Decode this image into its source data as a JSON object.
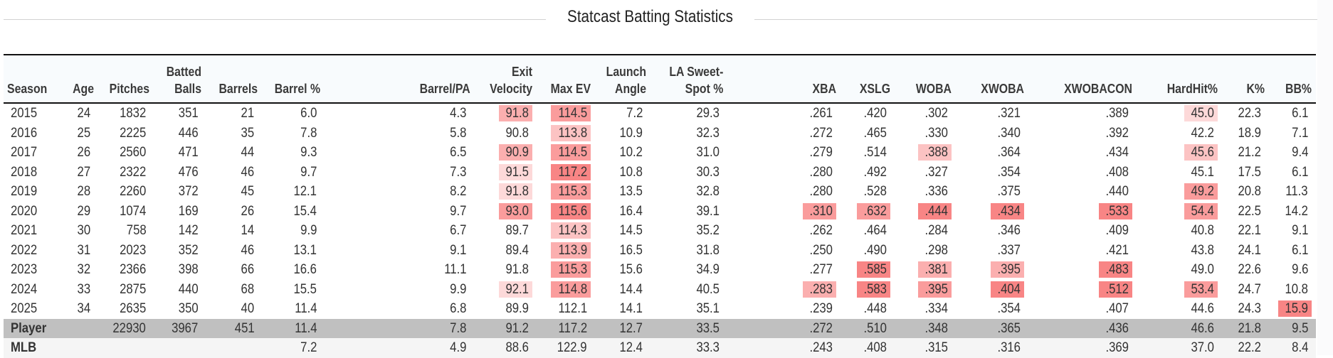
{
  "title": "Statcast Batting Statistics",
  "columns": [
    {
      "key": "season",
      "line1": "",
      "line2": "Season"
    },
    {
      "key": "age",
      "line1": "",
      "line2": "Age"
    },
    {
      "key": "pitches",
      "line1": "",
      "line2": "Pitches"
    },
    {
      "key": "batted_balls",
      "line1": "Batted",
      "line2": "Balls"
    },
    {
      "key": "barrels",
      "line1": "",
      "line2": "Barrels"
    },
    {
      "key": "barrel_pct",
      "line1": "",
      "line2": "Barrel %"
    },
    {
      "key": "barrel_pa",
      "line1": "",
      "line2": "Barrel/PA"
    },
    {
      "key": "exit_velocity",
      "line1": "Exit",
      "line2": "Velocity"
    },
    {
      "key": "max_ev",
      "line1": "",
      "line2": "Max EV"
    },
    {
      "key": "launch_angle",
      "line1": "Launch",
      "line2": "Angle"
    },
    {
      "key": "la_sweet_spot",
      "line1": "LA Sweet-",
      "line2": "Spot %"
    },
    {
      "key": "xba",
      "line1": "",
      "line2": "XBA"
    },
    {
      "key": "xslg",
      "line1": "",
      "line2": "XSLG"
    },
    {
      "key": "woba",
      "line1": "",
      "line2": "WOBA"
    },
    {
      "key": "xwoba",
      "line1": "",
      "line2": "XWOBA"
    },
    {
      "key": "xwobacon",
      "line1": "",
      "line2": "XWOBACON"
    },
    {
      "key": "hardhit",
      "line1": "",
      "line2": "HardHit%"
    },
    {
      "key": "k_pct",
      "line1": "",
      "line2": "K%"
    },
    {
      "key": "bb_pct",
      "line1": "",
      "line2": "BB%"
    }
  ],
  "heat_colors": {
    "h1": "#fdd9d9",
    "h2": "#fcc3c3",
    "h3": "#fbafaf",
    "h4": "#fa9c9c",
    "h5": "#f88585"
  },
  "rows": [
    {
      "type": "season",
      "cells": [
        "2015",
        "24",
        "1832",
        "351",
        "21",
        "6.0",
        "4.3",
        "91.8",
        "114.5",
        "7.2",
        "29.3",
        ".261",
        ".420",
        ".302",
        ".321",
        ".389",
        "45.0",
        "22.3",
        "6.1"
      ],
      "heat": {
        "7": "h3",
        "8": "h4",
        "16": "h1"
      }
    },
    {
      "type": "season",
      "cells": [
        "2016",
        "25",
        "2225",
        "446",
        "35",
        "7.8",
        "5.8",
        "90.8",
        "113.8",
        "10.9",
        "32.3",
        ".272",
        ".465",
        ".330",
        ".340",
        ".392",
        "42.2",
        "18.9",
        "7.1"
      ],
      "heat": {
        "8": "h2"
      }
    },
    {
      "type": "season",
      "cells": [
        "2017",
        "26",
        "2560",
        "471",
        "44",
        "9.3",
        "6.5",
        "90.9",
        "114.5",
        "10.2",
        "31.0",
        ".279",
        ".514",
        ".388",
        ".364",
        ".434",
        "45.6",
        "21.2",
        "9.4"
      ],
      "heat": {
        "7": "h3",
        "8": "h4",
        "13": "h2",
        "16": "h2"
      }
    },
    {
      "type": "season",
      "cells": [
        "2018",
        "27",
        "2322",
        "476",
        "46",
        "9.7",
        "7.3",
        "91.5",
        "117.2",
        "10.8",
        "30.3",
        ".280",
        ".492",
        ".327",
        ".354",
        ".408",
        "45.1",
        "17.5",
        "6.1"
      ],
      "heat": {
        "7": "h1",
        "8": "h5"
      }
    },
    {
      "type": "season",
      "cells": [
        "2019",
        "28",
        "2260",
        "372",
        "45",
        "12.1",
        "8.2",
        "91.8",
        "115.3",
        "13.5",
        "32.8",
        ".280",
        ".528",
        ".336",
        ".375",
        ".440",
        "49.2",
        "20.8",
        "11.3"
      ],
      "heat": {
        "7": "h1",
        "8": "h4",
        "16": "h4"
      }
    },
    {
      "type": "season",
      "cells": [
        "2020",
        "29",
        "1074",
        "169",
        "26",
        "15.4",
        "9.7",
        "93.0",
        "115.6",
        "16.4",
        "39.1",
        ".310",
        ".632",
        ".444",
        ".434",
        ".533",
        "54.4",
        "22.5",
        "14.2"
      ],
      "heat": {
        "7": "h4",
        "8": "h5",
        "11": "h4",
        "12": "h4",
        "13": "h5",
        "14": "h5",
        "15": "h5",
        "16": "h4"
      }
    },
    {
      "type": "season",
      "cells": [
        "2021",
        "30",
        "758",
        "142",
        "14",
        "9.9",
        "6.7",
        "89.7",
        "114.3",
        "14.5",
        "35.2",
        ".262",
        ".464",
        ".284",
        ".346",
        ".409",
        "40.8",
        "22.1",
        "9.1"
      ],
      "heat": {
        "8": "h2"
      }
    },
    {
      "type": "season",
      "cells": [
        "2022",
        "31",
        "2023",
        "352",
        "46",
        "13.1",
        "9.1",
        "89.4",
        "113.9",
        "16.5",
        "31.8",
        ".250",
        ".490",
        ".298",
        ".337",
        ".421",
        "43.8",
        "24.1",
        "6.1"
      ],
      "heat": {
        "8": "h3"
      }
    },
    {
      "type": "season",
      "cells": [
        "2023",
        "32",
        "2366",
        "398",
        "66",
        "16.6",
        "11.1",
        "91.8",
        "115.3",
        "15.6",
        "34.9",
        ".277",
        ".585",
        ".381",
        ".395",
        ".483",
        "49.0",
        "22.6",
        "9.6"
      ],
      "heat": {
        "8": "h4",
        "12": "h5",
        "13": "h3",
        "14": "h3",
        "15": "h5"
      }
    },
    {
      "type": "season",
      "cells": [
        "2024",
        "33",
        "2875",
        "440",
        "68",
        "15.5",
        "9.9",
        "92.1",
        "114.8",
        "14.4",
        "40.5",
        ".283",
        ".583",
        ".395",
        ".404",
        ".512",
        "53.4",
        "24.7",
        "10.8"
      ],
      "heat": {
        "7": "h1",
        "8": "h4",
        "11": "h3",
        "12": "h5",
        "13": "h4",
        "14": "h5",
        "15": "h5",
        "16": "h4"
      }
    },
    {
      "type": "season",
      "cells": [
        "2025",
        "34",
        "2635",
        "350",
        "40",
        "11.4",
        "6.8",
        "89.9",
        "112.1",
        "14.1",
        "35.1",
        ".239",
        ".448",
        ".334",
        ".354",
        ".407",
        "44.6",
        "24.3",
        "15.9"
      ],
      "heat": {
        "18": "h5"
      }
    },
    {
      "type": "player",
      "cells": [
        "Player",
        "",
        "22930",
        "3967",
        "451",
        "11.4",
        "7.8",
        "91.2",
        "117.2",
        "12.7",
        "33.5",
        ".272",
        ".510",
        ".348",
        ".365",
        ".436",
        "46.6",
        "21.8",
        "9.5"
      ],
      "heat": {}
    },
    {
      "type": "mlb",
      "cells": [
        "MLB",
        "",
        "",
        "",
        "",
        "7.2",
        "4.9",
        "88.6",
        "122.9",
        "12.4",
        "33.3",
        ".243",
        ".408",
        ".315",
        ".316",
        ".369",
        "37.0",
        "22.2",
        "8.4"
      ],
      "heat": {}
    }
  ]
}
